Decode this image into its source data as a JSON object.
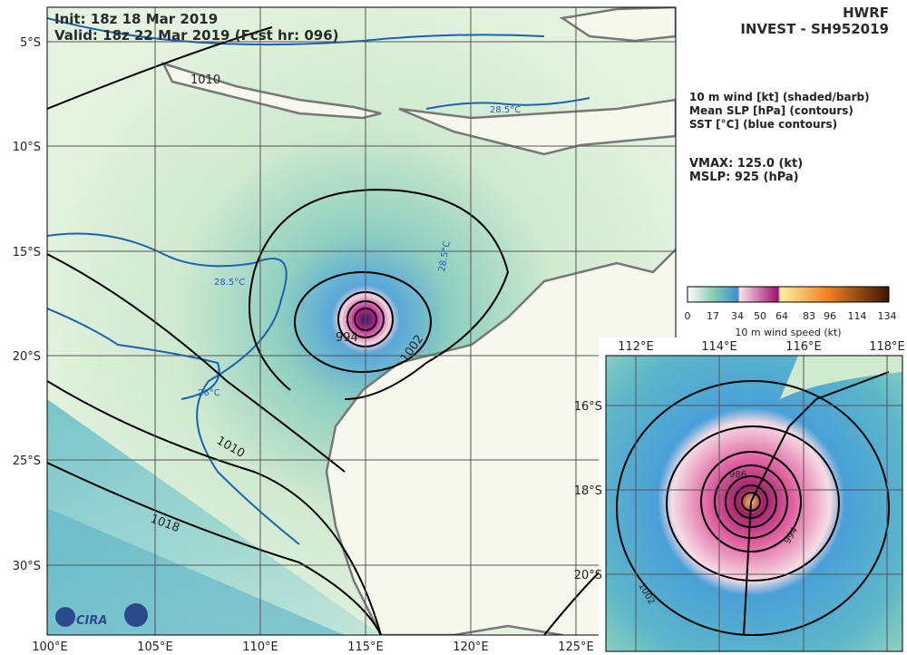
{
  "header": {
    "init": "Init:  18z 18 Mar 2019",
    "valid": "Valid: 18z 22 Mar 2019 (Fcst hr: 096)",
    "model": "HWRF",
    "storm": "INVEST - SH952019"
  },
  "legend": {
    "lines": [
      "10 m wind [kt] (shaded/barb)",
      "Mean SLP [hPa] (contours)",
      "SST [°C] (blue contours)"
    ],
    "vmax": "VMAX: 125.0 (kt)",
    "mslp": "MSLP:  925 (hPa)"
  },
  "colorbar": {
    "ticks": [
      "0",
      "17",
      "34",
      "50",
      "64",
      "83",
      "96",
      "114",
      "134"
    ],
    "label": "10 m wind speed (kt)"
  },
  "main_map": {
    "lat_labels": [
      "5°S",
      "10°S",
      "15°S",
      "20°S",
      "25°S",
      "30°S"
    ],
    "lon_labels": [
      "100°E",
      "105°E",
      "110°E",
      "115°E",
      "120°E",
      "125°E"
    ],
    "contour_labels": [
      "1010",
      "28.5°C",
      "26°C",
      "1010",
      "1018",
      "1002",
      "994",
      "28.5°C",
      "28.5°C"
    ]
  },
  "inset_map": {
    "lon_labels": [
      "112°E",
      "114°E",
      "116°E",
      "118°E"
    ],
    "lat_labels": [
      "16°S",
      "18°S",
      "20°S"
    ],
    "contour_labels": [
      "986",
      "994",
      "1002"
    ]
  },
  "logo": "CIRA"
}
